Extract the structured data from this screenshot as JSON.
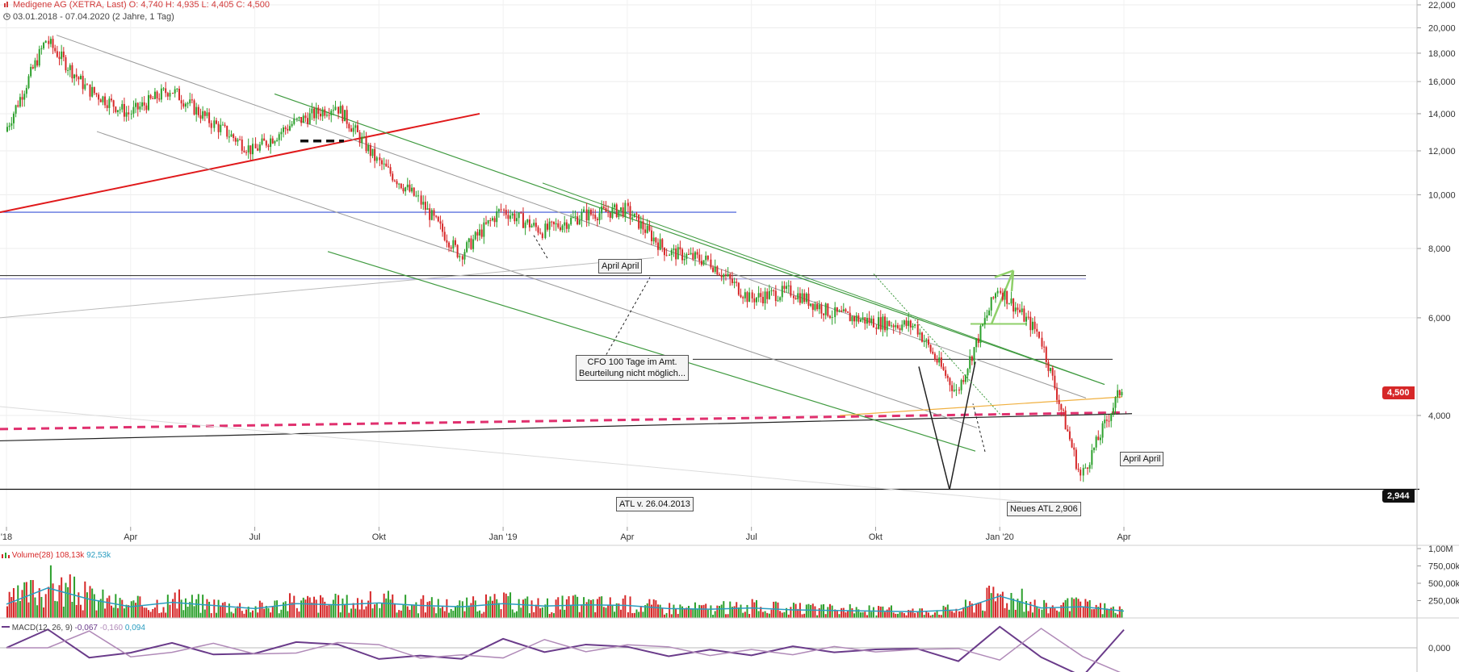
{
  "header": {
    "title": "Medigene AG (XETRA, Last)  O: 4,740  H: 4,935  L: 4,405  C: 4,500",
    "range": "03.01.2018 - 07.04.2020  (2 Jahre, 1 Tag)"
  },
  "annotations": {
    "april1": "April April",
    "april2": "April April",
    "cfo_line1": "CFO 100 Tage im Amt.",
    "cfo_line2": "Beurteilung nicht möglich...",
    "atl_old": "ATL v. 26.04.2013",
    "atl_new": "Neues ATL 2,906"
  },
  "price_tags": {
    "last": "4,500",
    "atl": "2,944"
  },
  "colors": {
    "up": "#2ca02c",
    "down": "#d62728",
    "trend_red": "#e0191b",
    "dashed_magenta": "#e0306e",
    "blue": "#3a55d8",
    "green_channel": "#3f9a3f",
    "gray": "#9a9a9a",
    "orange": "#f0b040",
    "macd": "#6a3b8a",
    "signal": "#b08ab8",
    "vol_avg": "#2a9dc0",
    "price_tag_red": "#d62728",
    "price_tag_black": "#111111"
  },
  "volume_panel": {
    "label": "Volume(28)",
    "v1": "108,13k",
    "v2": "92,53k",
    "ticks": [
      "1,00M",
      "750,00k",
      "500,00k",
      "250,00k"
    ]
  },
  "macd_panel": {
    "label": "MACD(12, 26, 9)",
    "v1": "-0,067",
    "v2": "-0,160",
    "v3": "0,094",
    "tick": "0,000"
  },
  "chart_data": {
    "type": "line",
    "title": "Medigene AG (XETRA, Last)",
    "y_scale": "log",
    "ylim": [
      2.6,
      22
    ],
    "y_ticks": [
      "22,000",
      "20,000",
      "18,000",
      "16,000",
      "14,000",
      "12,000",
      "10,000",
      "8,000",
      "6,000",
      "4,000"
    ],
    "x_ticks": [
      "'18",
      "Apr",
      "Jul",
      "Okt",
      "Jan '19",
      "Apr",
      "Jul",
      "Okt",
      "Jan '20",
      "Apr"
    ],
    "x": [
      "2018-01",
      "2018-02",
      "2018-03",
      "2018-04",
      "2018-05",
      "2018-06",
      "2018-07",
      "2018-08",
      "2018-09",
      "2018-10",
      "2018-11",
      "2018-12",
      "2019-01",
      "2019-02",
      "2019-03",
      "2019-04",
      "2019-05",
      "2019-06",
      "2019-07",
      "2019-08",
      "2019-09",
      "2019-10",
      "2019-11",
      "2019-12",
      "2020-01",
      "2020-02",
      "2020-03",
      "2020-04"
    ],
    "series": [
      {
        "values": [
          13.0,
          19.0,
          15.5,
          14.0,
          15.5,
          13.5,
          12.0,
          13.5,
          14.5,
          11.5,
          9.8,
          7.8,
          9.4,
          8.6,
          9.2,
          9.4,
          7.9,
          7.6,
          6.5,
          6.7,
          6.1,
          5.9,
          5.8,
          4.4,
          6.8,
          5.6,
          3.1,
          4.5
        ]
      }
    ],
    "volume_values": [
      220,
      480,
      300,
      180,
      250,
      200,
      150,
      230,
      210,
      240,
      200,
      180,
      230,
      190,
      210,
      200,
      150,
      140,
      160,
      130,
      120,
      110,
      100,
      130,
      350,
      160,
      180,
      110
    ],
    "volume_unit": "k",
    "legend": "none",
    "grid": true
  }
}
